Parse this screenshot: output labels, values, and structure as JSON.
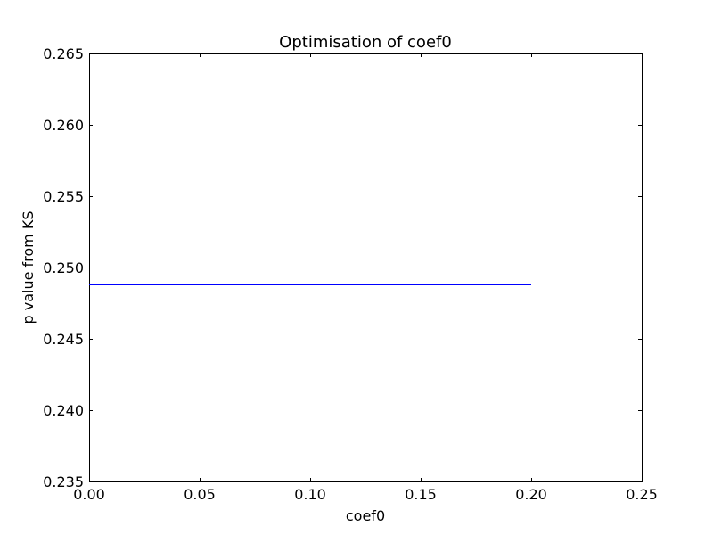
{
  "chart_data": {
    "type": "line",
    "title": "Optimisation of coef0",
    "xlabel": "coef0",
    "ylabel": "p value from KS",
    "xlim": [
      0.0,
      0.25
    ],
    "ylim": [
      0.235,
      0.265
    ],
    "x_ticks": [
      "0.00",
      "0.05",
      "0.10",
      "0.15",
      "0.20",
      "0.25"
    ],
    "y_ticks": [
      "0.235",
      "0.240",
      "0.245",
      "0.250",
      "0.255",
      "0.260",
      "0.265"
    ],
    "grid": false,
    "series": [
      {
        "color": "#0000ff",
        "x": [
          0.0,
          0.05,
          0.1,
          0.15,
          0.2
        ],
        "y": [
          0.2488,
          0.2488,
          0.2488,
          0.2488,
          0.2488
        ]
      }
    ]
  }
}
